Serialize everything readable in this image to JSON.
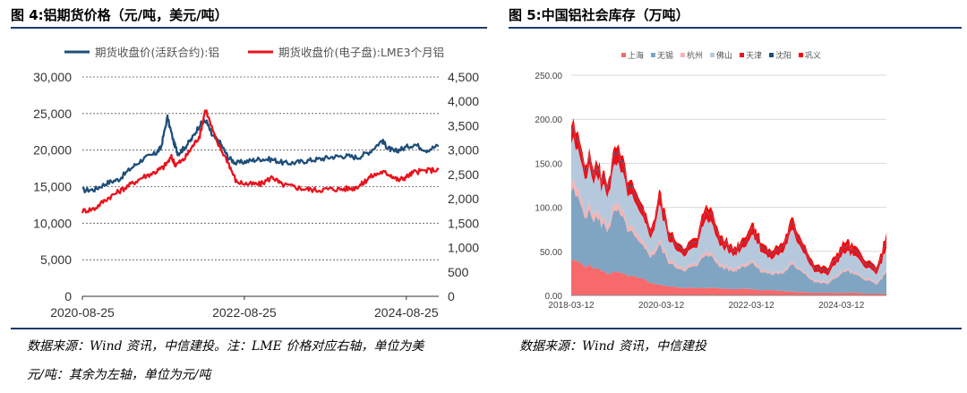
{
  "figures": {
    "left_title": "图 4:铝期货价格（元/吨，美元/吨）",
    "right_title": "图 5:中国铝社会库存（万吨）"
  },
  "notes": {
    "left_line1": "数据来源：Wind 资讯，中信建投。注：LME 价格对应右轴，单位为美",
    "left_line2": "元/吨：其余为左轴，单位为元/吨",
    "right": "数据来源：Wind 资讯，中信建投"
  },
  "chart_data": [
    {
      "type": "line",
      "title": "图 4:铝期货价格（元/吨，美元/吨）",
      "x_tick_labels": [
        "2020-08-25",
        "2022-08-25",
        "2024-08-25"
      ],
      "x_ticks": [
        2020.65,
        2022.65,
        2024.65
      ],
      "x_range": [
        2020.65,
        2025.05
      ],
      "y_left_range": [
        0,
        30000
      ],
      "y_left_ticks": [
        0,
        5000,
        10000,
        15000,
        20000,
        25000,
        30000
      ],
      "y_left_tick_labels": [
        "0",
        "5,000",
        "10,000",
        "15,000",
        "20,000",
        "25,000",
        "30,000"
      ],
      "y_right_range": [
        0,
        4500
      ],
      "y_right_ticks": [
        0,
        500,
        1000,
        1500,
        2000,
        2500,
        3000,
        3500,
        4000,
        4500
      ],
      "y_right_tick_labels": [
        "0",
        "500",
        "1,000",
        "1,500",
        "2,000",
        "2,500",
        "3,000",
        "3,500",
        "4,000",
        "4,500"
      ],
      "grid": true,
      "legend_position": "top",
      "series": [
        {
          "name": "期货收盘价(活跃合约):铝",
          "axis": "left",
          "color": "#1f4e79",
          "x": [
            2020.65,
            2020.8,
            2020.95,
            2021.1,
            2021.25,
            2021.4,
            2021.55,
            2021.62,
            2021.7,
            2021.78,
            2021.83,
            2021.9,
            2022.0,
            2022.1,
            2022.18,
            2022.25,
            2022.35,
            2022.45,
            2022.55,
            2022.7,
            2022.85,
            2023.0,
            2023.15,
            2023.3,
            2023.45,
            2023.6,
            2023.75,
            2023.9,
            2024.05,
            2024.2,
            2024.35,
            2024.42,
            2024.5,
            2024.6,
            2024.75,
            2024.9,
            2025.05
          ],
          "y": [
            14500,
            14600,
            15500,
            16000,
            17500,
            18800,
            19500,
            20300,
            24500,
            21000,
            19500,
            20200,
            21500,
            23500,
            24000,
            22000,
            21000,
            19000,
            18200,
            18500,
            18800,
            18700,
            18200,
            18300,
            18600,
            18800,
            19100,
            19200,
            19000,
            19800,
            21300,
            20300,
            19800,
            20200,
            20800,
            20000,
            20600
          ]
        },
        {
          "name": "期货收盘价(电子盘):LME3个月铝",
          "axis": "right",
          "color": "#e8121d",
          "x": [
            2020.65,
            2020.8,
            2020.95,
            2021.1,
            2021.25,
            2021.4,
            2021.55,
            2021.65,
            2021.75,
            2021.8,
            2021.9,
            2022.0,
            2022.1,
            2022.17,
            2022.3,
            2022.45,
            2022.55,
            2022.7,
            2022.85,
            2023.0,
            2023.1,
            2023.25,
            2023.4,
            2023.55,
            2023.7,
            2023.85,
            2024.0,
            2024.1,
            2024.2,
            2024.35,
            2024.45,
            2024.55,
            2024.65,
            2024.75,
            2024.9,
            2025.05
          ],
          "y": [
            1750,
            1800,
            2000,
            2150,
            2300,
            2450,
            2550,
            2650,
            2850,
            2700,
            2800,
            3050,
            3300,
            3850,
            3200,
            2750,
            2350,
            2300,
            2300,
            2450,
            2300,
            2250,
            2200,
            2180,
            2200,
            2200,
            2220,
            2300,
            2450,
            2550,
            2500,
            2380,
            2450,
            2550,
            2580,
            2600
          ]
        }
      ]
    },
    {
      "type": "area",
      "stacked": true,
      "title": "图 5:中国铝社会库存（万吨）",
      "x_tick_labels": [
        "2018-03-12",
        "2020-03-12",
        "2022-03-12",
        "2024-03-12"
      ],
      "x_ticks": [
        2018.2,
        2020.2,
        2022.2,
        2024.2
      ],
      "x_range": [
        2018.2,
        2025.2
      ],
      "y_range": [
        0,
        250
      ],
      "y_ticks": [
        0,
        50,
        100,
        150,
        200,
        250
      ],
      "y_tick_labels": [
        "0.00",
        "50.00",
        "100.00",
        "150.00",
        "200.00",
        "250.00"
      ],
      "grid": true,
      "legend_position": "top",
      "x": [
        2018.2,
        2018.5,
        2018.8,
        2019.0,
        2019.2,
        2019.5,
        2019.8,
        2020.0,
        2020.15,
        2020.4,
        2020.7,
        2021.0,
        2021.2,
        2021.5,
        2021.8,
        2022.0,
        2022.25,
        2022.4,
        2022.6,
        2022.9,
        2023.1,
        2023.3,
        2023.6,
        2023.9,
        2024.1,
        2024.3,
        2024.5,
        2024.8,
        2025.0,
        2025.2
      ],
      "series": [
        {
          "name": "上海",
          "color": "#f8696b",
          "values": [
            40,
            35,
            30,
            25,
            26,
            22,
            18,
            14,
            12,
            10,
            9,
            8,
            9,
            8,
            7,
            8,
            7,
            6,
            6,
            5,
            4,
            4,
            3,
            3,
            3,
            3,
            3,
            2,
            2,
            2
          ]
        },
        {
          "name": "无锡",
          "color": "#7fa5c2",
          "values": [
            80,
            60,
            55,
            50,
            70,
            50,
            35,
            30,
            45,
            25,
            20,
            25,
            40,
            25,
            20,
            25,
            30,
            22,
            18,
            20,
            30,
            25,
            12,
            10,
            18,
            25,
            20,
            15,
            10,
            25
          ]
        },
        {
          "name": "杭州",
          "color": "#f5b3b5",
          "values": [
            10,
            8,
            7,
            6,
            7,
            6,
            5,
            4,
            5,
            4,
            3,
            3,
            4,
            3,
            3,
            3,
            3,
            3,
            2,
            2,
            3,
            2,
            2,
            2,
            2,
            2,
            2,
            2,
            2,
            2
          ]
        },
        {
          "name": "佛山",
          "color": "#b6c9dc",
          "values": [
            45,
            40,
            38,
            35,
            45,
            35,
            25,
            18,
            40,
            20,
            15,
            18,
            40,
            22,
            15,
            18,
            30,
            22,
            15,
            22,
            35,
            25,
            10,
            8,
            15,
            20,
            18,
            12,
            10,
            25
          ]
        },
        {
          "name": "天津",
          "color": "#e8121d",
          "values": [
            12,
            10,
            9,
            9,
            12,
            9,
            7,
            6,
            10,
            6,
            5,
            6,
            10,
            7,
            5,
            6,
            8,
            6,
            5,
            6,
            8,
            6,
            4,
            4,
            6,
            7,
            6,
            4,
            4,
            10
          ]
        },
        {
          "name": "沈阳",
          "color": "#1f4e79",
          "values": [
            2,
            2,
            2,
            2,
            2,
            2,
            1,
            1,
            1,
            1,
            1,
            1,
            1,
            1,
            1,
            1,
            1,
            1,
            1,
            1,
            1,
            1,
            1,
            1,
            1,
            1,
            1,
            1,
            1,
            1
          ]
        },
        {
          "name": "巩义",
          "color": "#ff0000",
          "values": [
            6,
            5,
            5,
            4,
            6,
            5,
            4,
            4,
            6,
            4,
            3,
            4,
            6,
            4,
            3,
            4,
            5,
            4,
            3,
            4,
            5,
            4,
            3,
            3,
            4,
            5,
            4,
            3,
            3,
            6
          ]
        }
      ]
    }
  ]
}
